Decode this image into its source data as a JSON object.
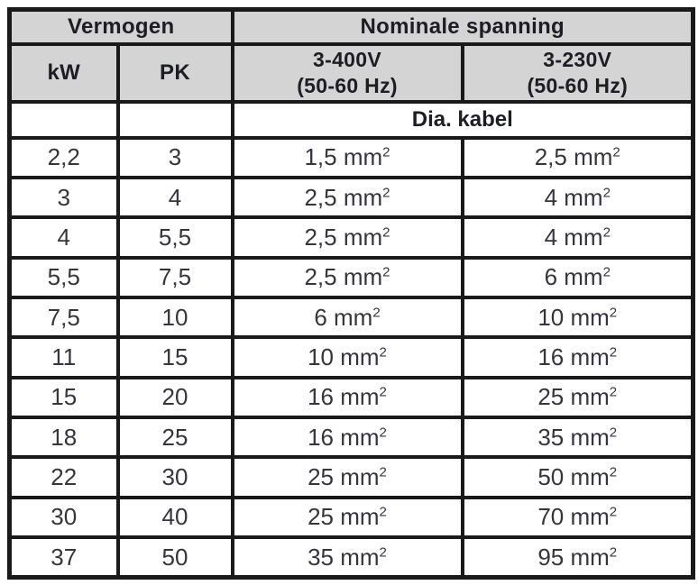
{
  "table": {
    "header": {
      "group_power": "Vermogen",
      "group_voltage": "Nominale spanning",
      "col_kw": "kW",
      "col_pk": "PK",
      "col_400_line1": "3-400V",
      "col_400_line2": "(50-60 Hz)",
      "col_230_line1": "3-230V",
      "col_230_line2": "(50-60 Hz)",
      "subheader": "Dia. kabel"
    },
    "unit_base": "mm",
    "unit_sup": "2",
    "rows": [
      {
        "kw": "2,2",
        "pk": "3",
        "cable_400": "1,5",
        "cable_230": "2,5"
      },
      {
        "kw": "3",
        "pk": "4",
        "cable_400": "2,5",
        "cable_230": "4"
      },
      {
        "kw": "4",
        "pk": "5,5",
        "cable_400": "2,5",
        "cable_230": "4"
      },
      {
        "kw": "5,5",
        "pk": "7,5",
        "cable_400": "2,5",
        "cable_230": "6"
      },
      {
        "kw": "7,5",
        "pk": "10",
        "cable_400": "6",
        "cable_230": "10"
      },
      {
        "kw": "11",
        "pk": "15",
        "cable_400": "10",
        "cable_230": "16"
      },
      {
        "kw": "15",
        "pk": "20",
        "cable_400": "16",
        "cable_230": "25"
      },
      {
        "kw": "18",
        "pk": "25",
        "cable_400": "16",
        "cable_230": "35"
      },
      {
        "kw": "22",
        "pk": "30",
        "cable_400": "25",
        "cable_230": "50"
      },
      {
        "kw": "30",
        "pk": "40",
        "cable_400": "25",
        "cable_230": "70"
      },
      {
        "kw": "37",
        "pk": "50",
        "cable_400": "35",
        "cable_230": "95"
      }
    ],
    "colors": {
      "header_bg": "#d4d4d4",
      "border": "#1a1a1a",
      "header_text": "#1d1d24",
      "data_text": "#35353d"
    }
  }
}
